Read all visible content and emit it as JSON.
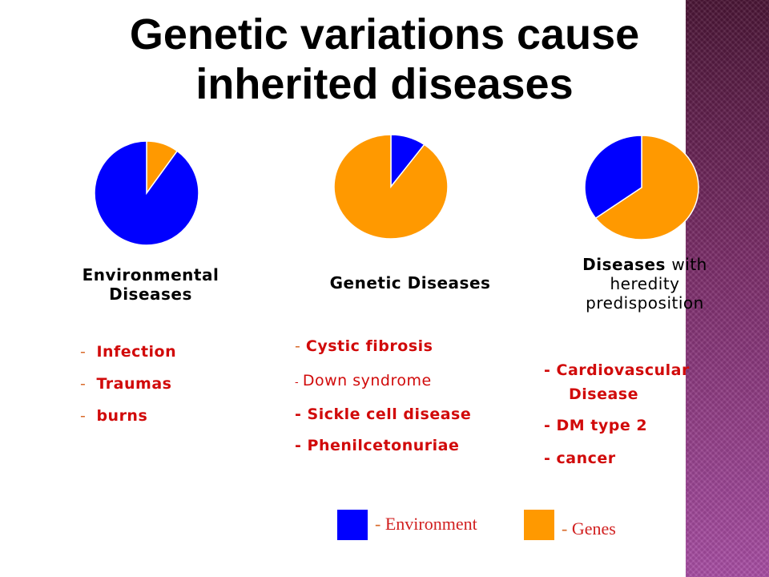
{
  "slide": {
    "title_line1": "Genetic variations cause",
    "title_line2": "inherited diseases"
  },
  "colors": {
    "environment": "#0000ff",
    "genes": "#ff9900",
    "list_text": "#d10a0a",
    "side_band": "#7a2d68"
  },
  "chart_data": [
    {
      "type": "pie",
      "title": "Environmental Diseases",
      "slices": [
        {
          "label": "Genes",
          "fraction": 0.1,
          "color": "#ff9900"
        },
        {
          "label": "Environment",
          "fraction": 0.9,
          "color": "#0000ff"
        }
      ]
    },
    {
      "type": "pie",
      "title": "Genetic Diseases",
      "slices": [
        {
          "label": "Environment",
          "fraction": 0.1,
          "color": "#0000ff"
        },
        {
          "label": "Genes",
          "fraction": 0.9,
          "color": "#ff9900"
        }
      ]
    },
    {
      "type": "pie",
      "title": "Diseases with heredity predisposition",
      "slices": [
        {
          "label": "Genes",
          "fraction": 0.65,
          "color": "#ff9900"
        },
        {
          "label": "Environment",
          "fraction": 0.35,
          "color": "#0000ff"
        }
      ]
    }
  ],
  "groups": {
    "environmental": {
      "label_line1": "Environmental",
      "label_line2": "Diseases",
      "items": [
        "Infection",
        "Traumas",
        "burns"
      ]
    },
    "genetic": {
      "label": "Genetic Diseases",
      "items": [
        "Cystic fibrosis",
        "Down syndrome",
        "Sickle cell disease",
        "Phenilcetonuriae"
      ]
    },
    "hereditary": {
      "label_word1": "Diseases",
      "label_word2": "with",
      "label_line2": "heredity",
      "label_line3": "predisposition",
      "item1_line1": "Cardiovascular",
      "item1_line2": "Disease",
      "item2": "DM type 2",
      "item3": "cancer"
    }
  },
  "legend": {
    "dash": "-",
    "environment_label": "Environment",
    "genes_label": "Genes"
  }
}
